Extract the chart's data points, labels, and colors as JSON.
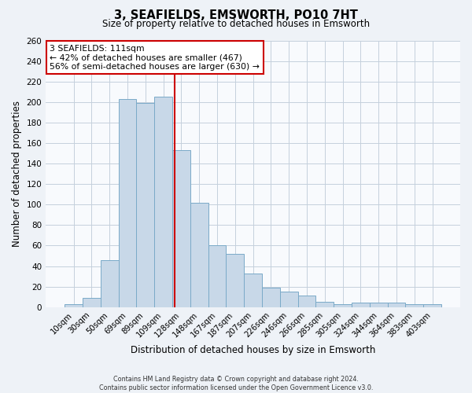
{
  "title": "3, SEAFIELDS, EMSWORTH, PO10 7HT",
  "subtitle": "Size of property relative to detached houses in Emsworth",
  "xlabel": "Distribution of detached houses by size in Emsworth",
  "ylabel": "Number of detached properties",
  "categories": [
    "10sqm",
    "30sqm",
    "50sqm",
    "69sqm",
    "89sqm",
    "109sqm",
    "128sqm",
    "148sqm",
    "167sqm",
    "187sqm",
    "207sqm",
    "226sqm",
    "246sqm",
    "266sqm",
    "285sqm",
    "305sqm",
    "324sqm",
    "344sqm",
    "364sqm",
    "383sqm",
    "403sqm"
  ],
  "values": [
    3,
    9,
    46,
    203,
    199,
    205,
    153,
    102,
    60,
    52,
    33,
    19,
    15,
    11,
    5,
    3,
    4,
    4,
    4,
    3,
    3
  ],
  "bar_color": "#c8d8e8",
  "bar_edge_color": "#7aaac8",
  "highlight_label": "3 SEAFIELDS: 111sqm",
  "annotation_line1": "← 42% of detached houses are smaller (467)",
  "annotation_line2": "56% of semi-detached houses are larger (630) →",
  "annotation_box_edge": "#cc0000",
  "vline_color": "#cc0000",
  "vline_x_index": 5.62,
  "ylim": [
    0,
    260
  ],
  "yticks": [
    0,
    20,
    40,
    60,
    80,
    100,
    120,
    140,
    160,
    180,
    200,
    220,
    240,
    260
  ],
  "footer_line1": "Contains HM Land Registry data © Crown copyright and database right 2024.",
  "footer_line2": "Contains public sector information licensed under the Open Government Licence v3.0.",
  "bg_color": "#eef2f7",
  "plot_bg_color": "#f8fafd",
  "grid_color": "#c5d0dc"
}
